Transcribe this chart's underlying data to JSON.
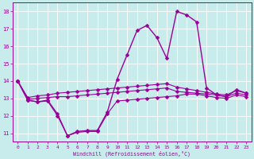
{
  "xlabel": "Windchill (Refroidissement éolien,°C)",
  "background_color": "#c8ecec",
  "grid_color": "#ffffff",
  "line_color": "#990099",
  "xlim": [
    -0.5,
    23.5
  ],
  "ylim": [
    10.5,
    18.5
  ],
  "yticks": [
    11,
    12,
    13,
    14,
    15,
    16,
    17,
    18
  ],
  "xticks": [
    0,
    1,
    2,
    3,
    4,
    5,
    6,
    7,
    8,
    9,
    10,
    11,
    12,
    13,
    14,
    15,
    16,
    17,
    18,
    19,
    20,
    21,
    22,
    23
  ],
  "series": {
    "main": {
      "x": [
        0,
        1,
        2,
        3,
        4,
        5,
        6,
        7,
        8,
        9,
        10,
        11,
        12,
        13,
        14,
        15,
        16,
        17,
        18,
        19,
        20,
        21,
        22,
        23
      ],
      "y": [
        14.0,
        12.9,
        12.8,
        12.9,
        12.1,
        10.85,
        11.1,
        11.15,
        11.15,
        12.2,
        14.1,
        15.5,
        16.9,
        17.2,
        16.5,
        15.3,
        18.0,
        17.8,
        17.4,
        13.6,
        13.2,
        13.1,
        13.5,
        13.3
      ]
    },
    "upper": {
      "x": [
        0,
        1,
        2,
        3,
        4,
        5,
        6,
        7,
        8,
        9,
        10,
        11,
        12,
        13,
        14,
        15,
        16,
        17,
        18,
        19,
        20,
        21,
        22,
        23
      ],
      "y": [
        14.0,
        13.05,
        13.15,
        13.2,
        13.3,
        13.35,
        13.4,
        13.45,
        13.5,
        13.55,
        13.6,
        13.65,
        13.7,
        13.75,
        13.8,
        13.85,
        13.65,
        13.55,
        13.45,
        13.35,
        13.25,
        13.2,
        13.45,
        13.3
      ]
    },
    "mid": {
      "x": [
        0,
        1,
        2,
        3,
        4,
        5,
        6,
        7,
        8,
        9,
        10,
        11,
        12,
        13,
        14,
        15,
        16,
        17,
        18,
        19,
        20,
        21,
        22,
        23
      ],
      "y": [
        14.0,
        12.95,
        13.0,
        13.05,
        13.1,
        13.1,
        13.15,
        13.2,
        13.25,
        13.3,
        13.35,
        13.4,
        13.45,
        13.5,
        13.55,
        13.6,
        13.4,
        13.35,
        13.3,
        13.25,
        13.2,
        13.1,
        13.3,
        13.2
      ]
    },
    "lower": {
      "x": [
        0,
        1,
        2,
        3,
        4,
        5,
        6,
        7,
        8,
        9,
        10,
        11,
        12,
        13,
        14,
        15,
        16,
        17,
        18,
        19,
        20,
        21,
        22,
        23
      ],
      "y": [
        14.0,
        12.9,
        12.8,
        12.85,
        12.0,
        10.85,
        11.05,
        11.1,
        11.1,
        12.1,
        12.85,
        12.9,
        12.95,
        13.0,
        13.05,
        13.1,
        13.15,
        13.25,
        13.25,
        13.15,
        13.05,
        13.0,
        13.2,
        13.1
      ]
    }
  }
}
